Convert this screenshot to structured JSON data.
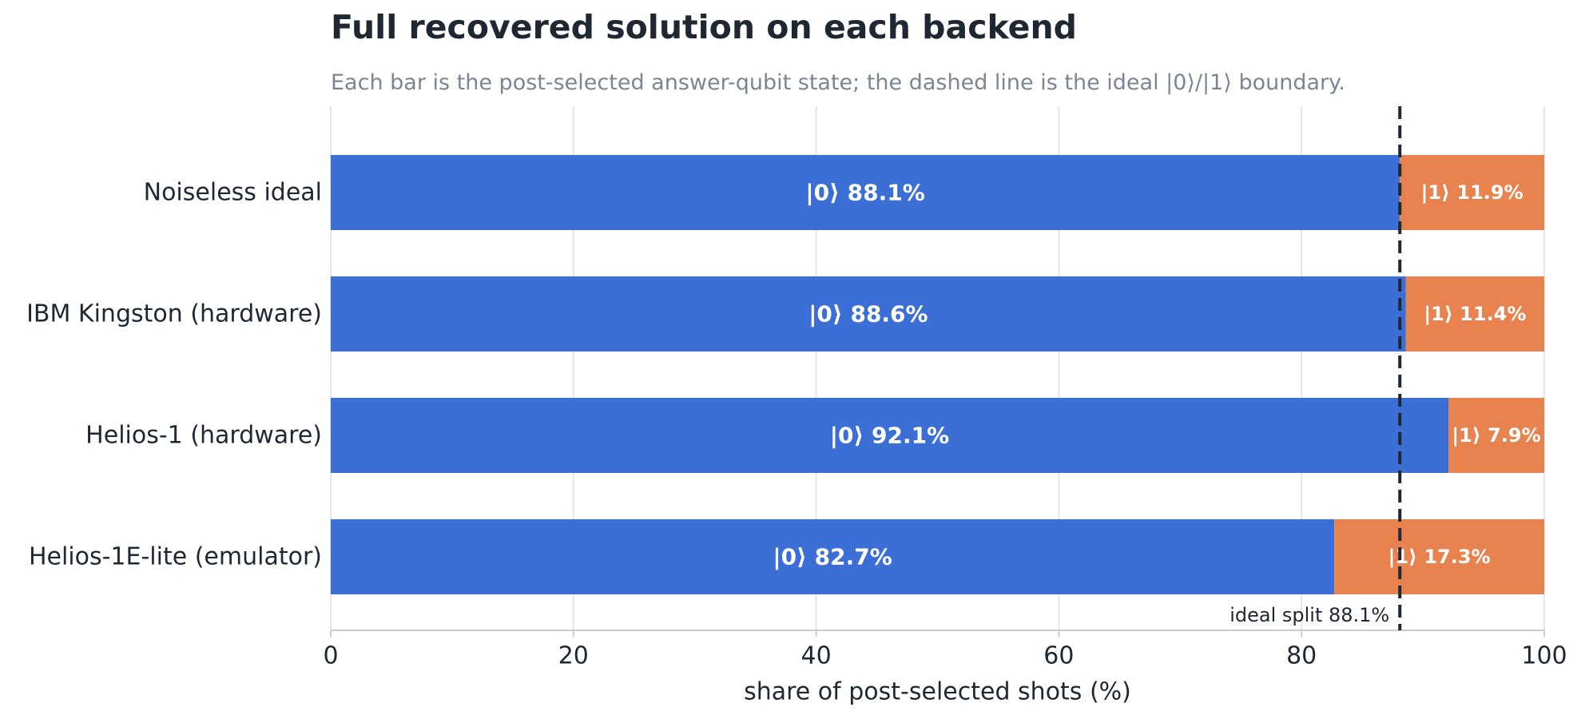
{
  "chart_data": {
    "type": "bar",
    "orientation": "horizontal",
    "stacked": true,
    "title": "Full recovered solution on each backend",
    "subtitle": "Each bar is the post-selected answer-qubit state; the dashed line is the ideal |0⟩/|1⟩ boundary.",
    "xlabel": "share of post-selected shots (%)",
    "ylabel": "",
    "xlim": [
      0,
      100
    ],
    "xticks": [
      0,
      20,
      40,
      60,
      80,
      100
    ],
    "grid": "vertical",
    "categories": [
      "Noiseless ideal",
      "IBM Kingston (hardware)",
      "Helios-1 (hardware)",
      "Helios-1E-lite (emulator)"
    ],
    "series": [
      {
        "name": "|0⟩",
        "color": "#3b6fd6",
        "values": [
          88.1,
          88.6,
          92.1,
          82.7
        ],
        "labels": [
          "|0⟩  88.1%",
          "|0⟩  88.6%",
          "|0⟩  92.1%",
          "|0⟩  82.7%"
        ]
      },
      {
        "name": "|1⟩",
        "color": "#e8834f",
        "values": [
          11.9,
          11.4,
          7.9,
          17.3
        ],
        "labels": [
          "|1⟩ 11.9%",
          "|1⟩ 11.4%",
          "|1⟩ 7.9%",
          "|1⟩ 17.3%"
        ]
      }
    ],
    "reference_line": {
      "value": 88.1,
      "style": "dashed",
      "color": "#1f2733",
      "label": "ideal split  88.1%"
    }
  }
}
